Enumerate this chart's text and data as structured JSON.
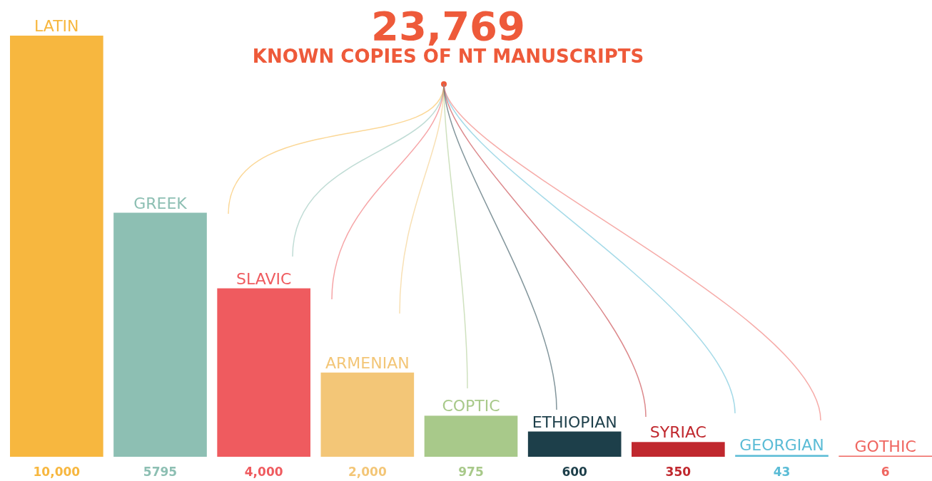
{
  "chart_data": {
    "type": "bar",
    "title": "23,769",
    "subtitle": "KNOWN COPIES OF NT MANUSCRIPTS",
    "categories": [
      "LATIN",
      "GREEK",
      "SLAVIC",
      "ARMENIAN",
      "COPTIC",
      "ETHIOPIAN",
      "SYRIAC",
      "GEORGIAN",
      "GOTHIC"
    ],
    "values": [
      10000,
      5795,
      4000,
      2000,
      975,
      600,
      350,
      43,
      6
    ],
    "value_labels": [
      "10,000",
      "5795",
      "4,000",
      "2,000",
      "975",
      "600",
      "350",
      "43",
      "6"
    ],
    "colors": [
      "#f7b73f",
      "#8dbfb3",
      "#ef5b5f",
      "#f3c677",
      "#a8c98a",
      "#1d3f4a",
      "#c0282e",
      "#5bbcd6",
      "#ef6660"
    ],
    "tick_labels": false
  }
}
